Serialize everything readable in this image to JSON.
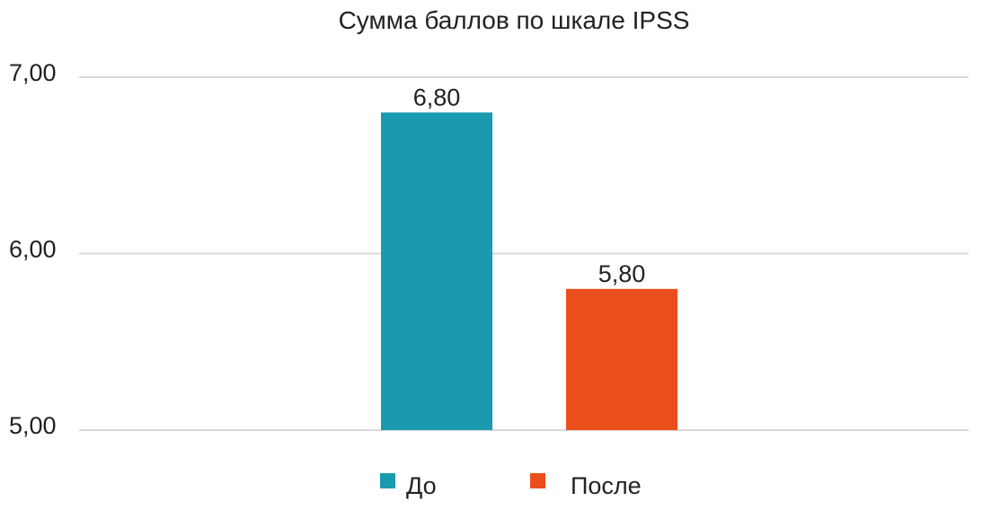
{
  "chart_data": {
    "type": "bar",
    "title": "Сумма баллов по шкале IPSS",
    "xlabel": "",
    "ylabel": "",
    "ylim": [
      5,
      7
    ],
    "yticks": [
      "5,00",
      "6,00",
      "7,00"
    ],
    "grid": true,
    "legend_position": "bottom",
    "series": [
      {
        "name": "До",
        "value": 6.8,
        "label": "6,80",
        "color": "#1a9aaf"
      },
      {
        "name": "После",
        "value": 5.8,
        "label": "5,80",
        "color": "#e94e1b"
      }
    ]
  }
}
